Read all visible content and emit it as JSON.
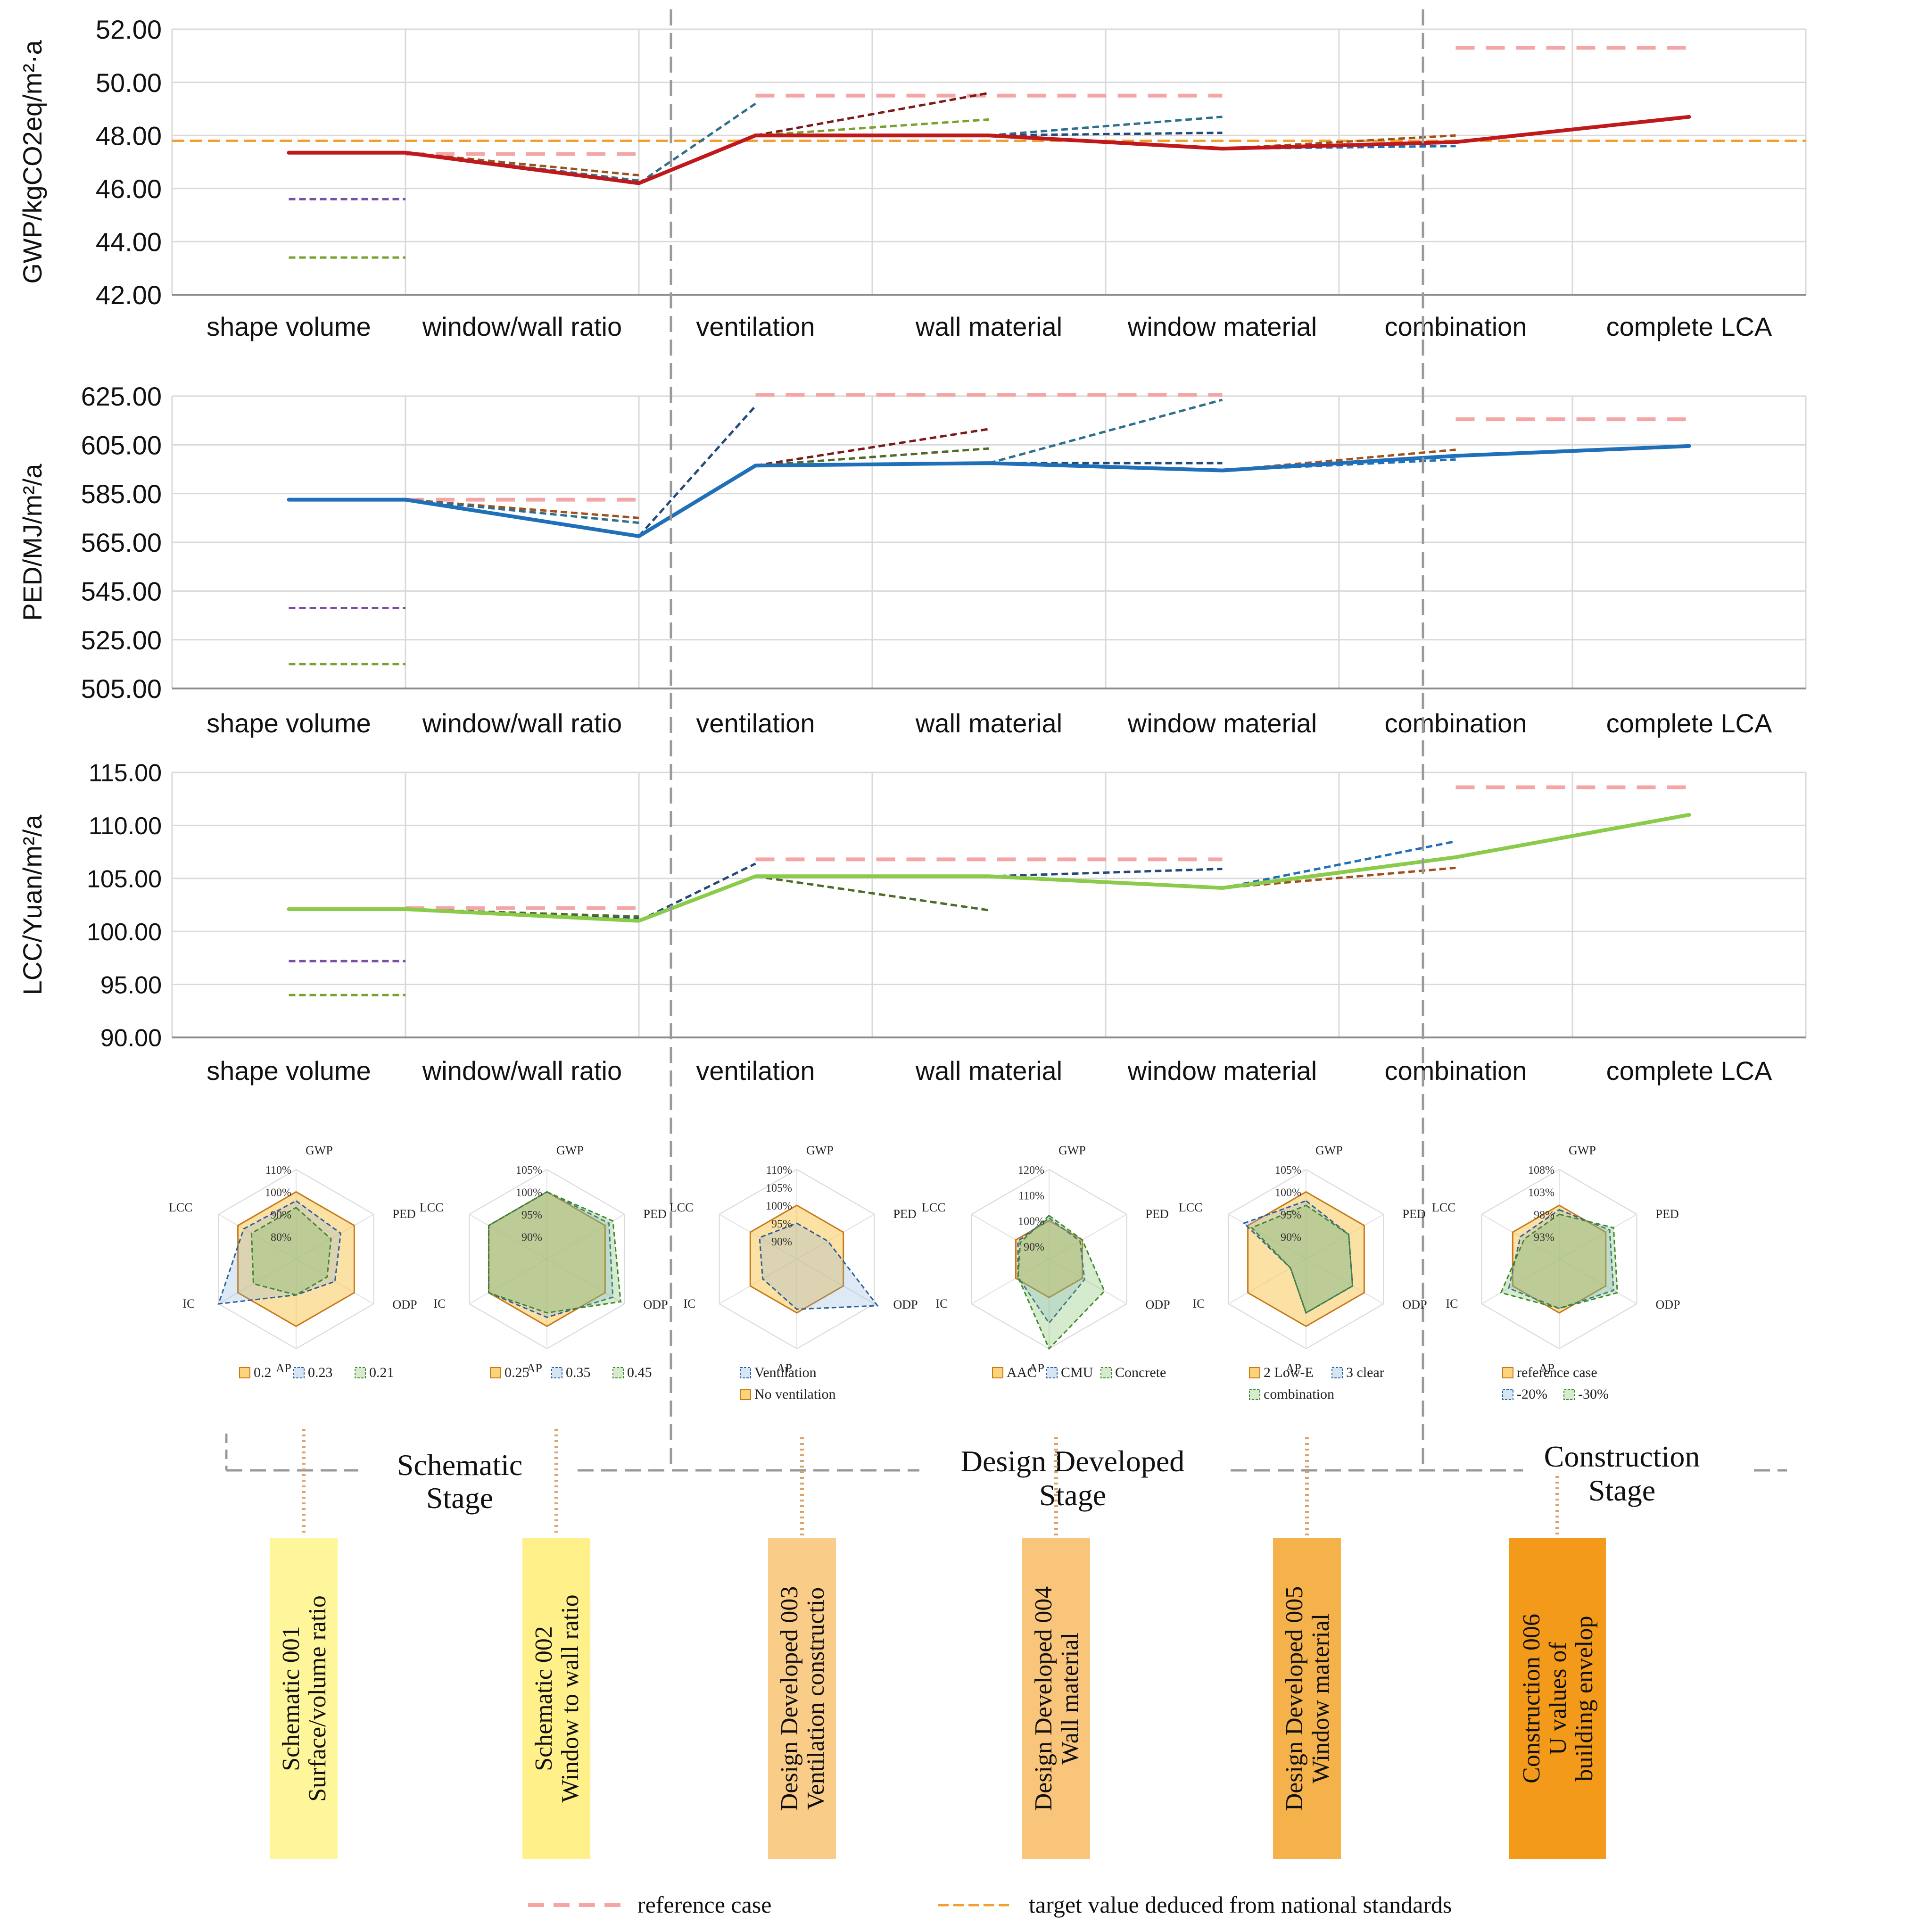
{
  "categories": [
    "shape volume",
    "window/wall ratio",
    "ventilation",
    "wall material",
    "window material",
    "combination",
    "complete LCA"
  ],
  "colors": {
    "reference": "#f4a6a6",
    "target": "#f0a030",
    "red": "#c0191c",
    "blue": "#1f6fb9",
    "green": "#8bcb4a",
    "purple": "#7a4ea0",
    "olive": "#7aa030",
    "darkblue": "#244a7a",
    "darkred": "#7a1a1a",
    "darkgreen": "#4f6a2a",
    "teal": "#2e6f8e",
    "brown": "#a0501a",
    "grid": "#d9d9d9",
    "divider": "#9a9a9a"
  },
  "chart_data": [
    {
      "type": "line",
      "id": "gwp",
      "ylabel": "GWP/kgCO2eq/m²·a",
      "ylim": [
        42,
        52
      ],
      "ticks": [
        42,
        44,
        46,
        48,
        50,
        52
      ],
      "tick_labels": [
        "42.00",
        "44.00",
        "46.00",
        "48.00",
        "50.00",
        "52.00"
      ],
      "main_series": {
        "x": [
          0,
          0.5,
          1.5,
          2,
          3,
          4,
          5,
          6
        ],
        "values": [
          47.35,
          47.35,
          46.2,
          48.0,
          48.0,
          47.5,
          47.75,
          48.7
        ],
        "color": "red"
      },
      "branches": [
        {
          "x": [
            0,
            0.5
          ],
          "values": [
            45.6,
            45.6
          ],
          "color": "purple"
        },
        {
          "x": [
            0,
            0.5
          ],
          "values": [
            43.4,
            43.4
          ],
          "color": "olive"
        },
        {
          "x": [
            0.5,
            1.5
          ],
          "values": [
            47.35,
            46.5
          ],
          "color": "brown"
        },
        {
          "x": [
            0.5,
            1.5
          ],
          "values": [
            47.35,
            46.3
          ],
          "color": "teal"
        },
        {
          "x": [
            1.5,
            2
          ],
          "values": [
            46.2,
            49.2
          ],
          "color": "teal"
        },
        {
          "x": [
            2,
            3
          ],
          "values": [
            48.0,
            49.6
          ],
          "color": "darkred"
        },
        {
          "x": [
            2,
            3
          ],
          "values": [
            48.0,
            48.6
          ],
          "color": "olive"
        },
        {
          "x": [
            3,
            4
          ],
          "values": [
            48.0,
            48.7
          ],
          "color": "teal"
        },
        {
          "x": [
            3,
            4
          ],
          "values": [
            48.0,
            48.1
          ],
          "color": "darkblue"
        },
        {
          "x": [
            4,
            5
          ],
          "values": [
            47.5,
            48.0
          ],
          "color": "brown"
        },
        {
          "x": [
            4,
            5
          ],
          "values": [
            47.5,
            47.6
          ],
          "color": "blue"
        }
      ],
      "reference": [
        {
          "x": [
            0.5,
            1.5
          ],
          "value": 47.3
        },
        {
          "x": [
            2,
            4
          ],
          "value": 49.5
        },
        {
          "x": [
            5,
            6
          ],
          "value": 51.3
        }
      ],
      "target": 47.8
    },
    {
      "type": "line",
      "id": "ped",
      "ylabel": "PED/MJ/m²/a",
      "ylim": [
        505,
        625
      ],
      "ticks": [
        505,
        525,
        545,
        565,
        585,
        605,
        625
      ],
      "tick_labels": [
        "505.00",
        "525.00",
        "545.00",
        "565.00",
        "585.00",
        "605.00",
        "625.00"
      ],
      "main_series": {
        "x": [
          0,
          0.5,
          1.5,
          2,
          3,
          4,
          5,
          6
        ],
        "values": [
          582.5,
          582.5,
          567.5,
          596.5,
          597.5,
          594.5,
          600.5,
          604.5
        ],
        "color": "blue"
      },
      "branches": [
        {
          "x": [
            0,
            0.5
          ],
          "values": [
            538.0,
            538.0
          ],
          "color": "purple"
        },
        {
          "x": [
            0,
            0.5
          ],
          "values": [
            515.0,
            515.0
          ],
          "color": "olive"
        },
        {
          "x": [
            0.5,
            1.5
          ],
          "values": [
            582.5,
            575.0
          ],
          "color": "brown"
        },
        {
          "x": [
            0.5,
            1.5
          ],
          "values": [
            582.5,
            573.0
          ],
          "color": "teal"
        },
        {
          "x": [
            1.5,
            2
          ],
          "values": [
            567.5,
            621.0
          ],
          "color": "darkblue"
        },
        {
          "x": [
            2,
            3
          ],
          "values": [
            596.5,
            611.5
          ],
          "color": "darkred"
        },
        {
          "x": [
            2,
            3
          ],
          "values": [
            596.5,
            603.5
          ],
          "color": "darkgreen"
        },
        {
          "x": [
            3,
            4
          ],
          "values": [
            597.5,
            623.5
          ],
          "color": "teal"
        },
        {
          "x": [
            3,
            4
          ],
          "values": [
            597.5,
            597.5
          ],
          "color": "darkblue"
        },
        {
          "x": [
            4,
            5
          ],
          "values": [
            594.5,
            603.0
          ],
          "color": "brown"
        },
        {
          "x": [
            4,
            5
          ],
          "values": [
            594.5,
            599.0
          ],
          "color": "blue"
        }
      ],
      "reference": [
        {
          "x": [
            0.5,
            1.5
          ],
          "value": 582.5
        },
        {
          "x": [
            2,
            4
          ],
          "value": 625.5
        },
        {
          "x": [
            5,
            6
          ],
          "value": 615.5
        }
      ]
    },
    {
      "type": "line",
      "id": "lcc",
      "ylabel": "LCC/Yuan/m²/a",
      "ylim": [
        90,
        115
      ],
      "ticks": [
        90,
        95,
        100,
        105,
        110,
        115
      ],
      "tick_labels": [
        "90.00",
        "95.00",
        "100.00",
        "105.00",
        "110.00",
        "115.00"
      ],
      "main_series": {
        "x": [
          0,
          0.5,
          1.5,
          2,
          3,
          4,
          5,
          6
        ],
        "values": [
          102.1,
          102.1,
          101.0,
          105.2,
          105.2,
          104.1,
          107.0,
          111.0
        ],
        "color": "green"
      },
      "branches": [
        {
          "x": [
            0,
            0.5
          ],
          "values": [
            97.2,
            97.2
          ],
          "color": "purple"
        },
        {
          "x": [
            0,
            0.5
          ],
          "values": [
            94.0,
            94.0
          ],
          "color": "olive"
        },
        {
          "x": [
            0.5,
            1.5
          ],
          "values": [
            102.1,
            101.2
          ],
          "color": "darkblue"
        },
        {
          "x": [
            0.5,
            1.5
          ],
          "values": [
            102.1,
            101.4
          ],
          "color": "darkgreen"
        },
        {
          "x": [
            1.5,
            2
          ],
          "values": [
            101.0,
            106.4
          ],
          "color": "darkblue"
        },
        {
          "x": [
            2,
            3
          ],
          "values": [
            105.2,
            102.0
          ],
          "color": "darkgreen"
        },
        {
          "x": [
            3,
            4
          ],
          "values": [
            105.2,
            105.9
          ],
          "color": "darkblue"
        },
        {
          "x": [
            4,
            5
          ],
          "values": [
            104.1,
            108.5
          ],
          "color": "blue"
        },
        {
          "x": [
            4,
            5
          ],
          "values": [
            104.1,
            106.0
          ],
          "color": "brown"
        }
      ],
      "reference": [
        {
          "x": [
            0.5,
            1.5
          ],
          "value": 102.2
        },
        {
          "x": [
            2,
            4
          ],
          "value": 106.8
        },
        {
          "x": [
            5,
            6
          ],
          "value": 113.6
        }
      ]
    }
  ],
  "radars": [
    {
      "axes": [
        "GWP",
        "PED",
        "ODP",
        "AP",
        "IC",
        "LCC"
      ],
      "rings": [
        "110%",
        "100%",
        "90%",
        "80%"
      ],
      "ring_values": [
        110,
        100,
        90,
        80
      ],
      "min": 70,
      "max": 110,
      "series": [
        {
          "name": "0.2",
          "color": "target",
          "values": [
            100,
            100,
            100,
            100,
            100,
            100
          ]
        },
        {
          "name": "0.23",
          "color": "blue",
          "values": [
            96,
            93,
            90,
            86,
            110,
            97
          ]
        },
        {
          "name": "0.21",
          "color": "darkgreen",
          "values": [
            93,
            88,
            86,
            86,
            92,
            93
          ]
        }
      ],
      "legend": [
        [
          "0.2",
          "0.23",
          "0.21"
        ]
      ]
    },
    {
      "axes": [
        "GWP",
        "PED",
        "ODP",
        "AP",
        "IC",
        "LCC"
      ],
      "rings": [
        "105%",
        "100%",
        "95%",
        "90%"
      ],
      "ring_values": [
        105,
        100,
        95,
        90
      ],
      "min": 85,
      "max": 105,
      "series": [
        {
          "name": "0.25",
          "color": "target",
          "values": [
            100,
            100,
            100,
            100,
            100,
            100
          ]
        },
        {
          "name": "0.35",
          "color": "blue",
          "values": [
            100,
            101,
            102,
            98,
            100,
            100
          ]
        },
        {
          "name": "0.45",
          "color": "darkgreen",
          "values": [
            100,
            102,
            104,
            97,
            100,
            100
          ]
        }
      ],
      "legend": [
        [
          "0.25",
          "0.35",
          "0.45"
        ]
      ]
    },
    {
      "axes": [
        "GWP",
        "PED",
        "ODP",
        "AP",
        "IC",
        "LCC"
      ],
      "rings": [
        "110%",
        "105%",
        "100%",
        "95%",
        "90%"
      ],
      "ring_values": [
        110,
        105,
        100,
        95,
        90
      ],
      "min": 85,
      "max": 110,
      "series": [
        {
          "name": "No ventilation",
          "color": "target",
          "values": [
            100,
            100,
            100,
            100,
            100,
            100
          ]
        },
        {
          "name": "Ventilation",
          "color": "blue",
          "values": [
            95,
            95,
            111,
            99,
            96,
            97
          ]
        }
      ],
      "legend": [
        [
          "Ventilation"
        ],
        [
          "No ventilation"
        ]
      ]
    },
    {
      "axes": [
        "GWP",
        "PED",
        "ODP",
        "AP",
        "IC",
        "LCC"
      ],
      "rings": [
        "120%",
        "110%",
        "100%",
        "90%"
      ],
      "ring_values": [
        120,
        110,
        100,
        90
      ],
      "min": 85,
      "max": 120,
      "series": [
        {
          "name": "AAC",
          "color": "target",
          "values": [
            100,
            100,
            100,
            100,
            100,
            100
          ]
        },
        {
          "name": "CMU",
          "color": "blue",
          "values": [
            101,
            99,
            101,
            110,
            99,
            99
          ]
        },
        {
          "name": "Concrete",
          "color": "darkgreen",
          "values": [
            102,
            100,
            110,
            120,
            99,
            98
          ]
        }
      ],
      "legend": [
        [
          "AAC",
          "CMU",
          "Concrete"
        ]
      ]
    },
    {
      "axes": [
        "GWP",
        "PED",
        "ODP",
        "AP",
        "IC",
        "LCC"
      ],
      "rings": [
        "105%",
        "100%",
        "95%",
        "90%"
      ],
      "ring_values": [
        105,
        100,
        95,
        90
      ],
      "min": 85,
      "max": 105,
      "series": [
        {
          "name": "2 Low-E",
          "color": "target",
          "values": [
            100,
            100,
            100,
            100,
            100,
            100
          ]
        },
        {
          "name": "3 clear",
          "color": "blue",
          "values": [
            98,
            96,
            97,
            97,
            89,
            101
          ]
        },
        {
          "name": "combination",
          "color": "darkgreen",
          "values": [
            97,
            96,
            97,
            97,
            89,
            99
          ]
        }
      ],
      "legend": [
        [
          "2 Low-E",
          "3 clear"
        ],
        [
          "combination"
        ]
      ]
    },
    {
      "axes": [
        "GWP",
        "PED",
        "ODP",
        "AP",
        "IC",
        "LCC"
      ],
      "rings": [
        "108%",
        "103%",
        "98%",
        "93%"
      ],
      "ring_values": [
        108,
        103,
        98,
        93
      ],
      "min": 88,
      "max": 108,
      "series": [
        {
          "name": "reference case",
          "color": "target",
          "values": [
            100,
            100,
            100,
            100,
            100,
            100
          ]
        },
        {
          "name": "-20%",
          "color": "blue",
          "values": [
            99,
            101,
            102,
            99,
            101,
            98
          ]
        },
        {
          "name": "-30%",
          "color": "darkgreen",
          "values": [
            98,
            102,
            103,
            99,
            103,
            97
          ]
        }
      ],
      "legend": [
        [
          "reference case"
        ],
        [
          "-20%",
          "-30%"
        ]
      ]
    }
  ],
  "stages": [
    {
      "lines": [
        "Schematic",
        "Stage"
      ]
    },
    {
      "lines": [
        "Design Developed",
        "Stage"
      ]
    },
    {
      "lines": [
        "Construction",
        "Stage"
      ]
    }
  ],
  "stage_boxes": [
    {
      "lines": [
        "Schematic 001",
        "Surface/volume ratio"
      ],
      "color": "#fff59a"
    },
    {
      "lines": [
        "Schematic 002",
        "Window to wall ratio"
      ],
      "color": "#fff08a"
    },
    {
      "lines": [
        "Design Developed 003",
        "Ventilation constructio"
      ],
      "color": "#f9cc88"
    },
    {
      "lines": [
        "Design Developed 004",
        "Wall material"
      ],
      "color": "#f8c57a"
    },
    {
      "lines": [
        "Design Developed 005",
        "Window material"
      ],
      "color": "#f6b24a"
    },
    {
      "lines": [
        "Construction 006",
        "U values of",
        "building envelop"
      ],
      "color": "#f39a1a"
    }
  ],
  "legend": {
    "reference": "reference case",
    "target": "target value deduced from national standards"
  }
}
